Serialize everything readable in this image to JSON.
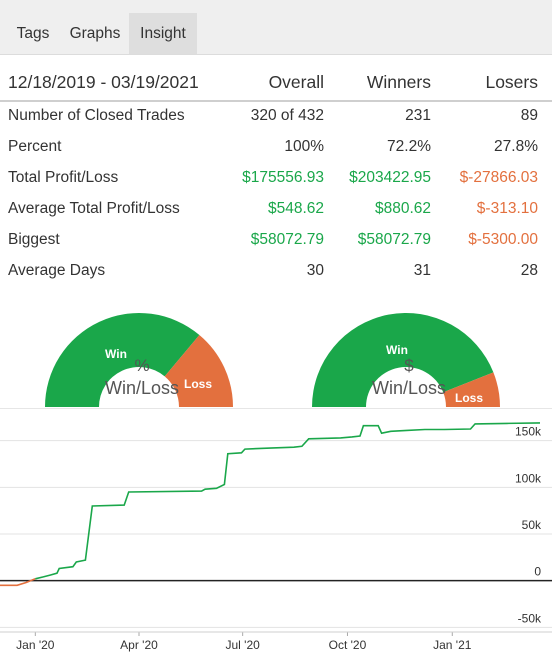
{
  "tabs": [
    {
      "label": "Tags",
      "active": false
    },
    {
      "label": "Graphs",
      "active": false
    },
    {
      "label": "Insight",
      "active": true
    }
  ],
  "stats": {
    "date_range": "12/18/2019 - 03/19/2021",
    "headers": [
      "Overall",
      "Winners",
      "Losers"
    ],
    "rows": [
      {
        "label": "Number of Closed Trades",
        "overall": "320 of 432",
        "winners": "231",
        "losers": "89"
      },
      {
        "label": "Percent",
        "overall": "100%",
        "winners": "72.2%",
        "losers": "27.8%"
      },
      {
        "label": "Total Profit/Loss",
        "overall": "$175556.93",
        "winners": "$203422.95",
        "losers": "$-27866.03"
      },
      {
        "label": "Average Total Profit/Loss",
        "overall": "$548.62",
        "winners": "$880.62",
        "losers": "$-313.10"
      },
      {
        "label": "Biggest",
        "overall": "$58072.79",
        "winners": "$58072.79",
        "losers": "$-5300.00"
      },
      {
        "label": "Average Days",
        "overall": "30",
        "winners": "31",
        "losers": "28"
      }
    ]
  },
  "gauges": [
    {
      "symbol": "%",
      "caption": "Win/Loss",
      "win_label": "Win",
      "loss_label": "Loss",
      "win_fraction": 0.722
    },
    {
      "symbol": "$",
      "caption": "Win/Loss",
      "win_label": "Win",
      "loss_label": "Loss",
      "win_fraction": 0.88
    }
  ],
  "colors": {
    "win": "#1aa74a",
    "loss": "#e3703e",
    "text": "#333333"
  },
  "chart_data": {
    "type": "line",
    "y_ticks": [
      {
        "value": 150000,
        "label": "150k"
      },
      {
        "value": 100000,
        "label": "100k"
      },
      {
        "value": 50000,
        "label": "50k"
      },
      {
        "value": 0,
        "label": "0"
      },
      {
        "value": -50000,
        "label": "-50k"
      }
    ],
    "x_ticks": [
      {
        "date": "2020-01-01",
        "label": "Jan '20"
      },
      {
        "date": "2020-04-01",
        "label": "Apr '20"
      },
      {
        "date": "2020-07-01",
        "label": "Jul '20"
      },
      {
        "date": "2020-10-01",
        "label": "Oct '20"
      },
      {
        "date": "2021-01-01",
        "label": "Jan '21"
      }
    ],
    "ylim": [
      -55000,
      185000
    ],
    "xlim": [
      "2019-12-01",
      "2021-03-19"
    ],
    "grid": true,
    "series": [
      {
        "color": "#1aa74a",
        "points": [
          [
            "2019-12-01",
            -5000
          ],
          [
            "2019-12-16",
            -5000
          ],
          [
            "2019-12-24",
            -2000
          ],
          [
            "2020-01-01",
            2000
          ],
          [
            "2020-01-08",
            4000
          ],
          [
            "2020-01-14",
            6000
          ],
          [
            "2020-01-20",
            8000
          ],
          [
            "2020-01-22",
            13000
          ],
          [
            "2020-02-03",
            15000
          ],
          [
            "2020-02-06",
            20000
          ],
          [
            "2020-02-14",
            22000
          ],
          [
            "2020-02-20",
            80000
          ],
          [
            "2020-03-19",
            81000
          ],
          [
            "2020-03-23",
            95000
          ],
          [
            "2020-05-26",
            96000
          ],
          [
            "2020-05-29",
            98000
          ],
          [
            "2020-06-08",
            99000
          ],
          [
            "2020-06-15",
            103000
          ],
          [
            "2020-06-18",
            136000
          ],
          [
            "2020-06-30",
            137000
          ],
          [
            "2020-07-03",
            141000
          ],
          [
            "2020-07-25",
            142000
          ],
          [
            "2020-08-15",
            143000
          ],
          [
            "2020-08-22",
            144000
          ],
          [
            "2020-08-28",
            152000
          ],
          [
            "2020-09-25",
            153000
          ],
          [
            "2020-10-05",
            154000
          ],
          [
            "2020-10-12",
            155000
          ],
          [
            "2020-10-15",
            166000
          ],
          [
            "2020-10-28",
            166000
          ],
          [
            "2020-10-31",
            158000
          ],
          [
            "2020-11-08",
            160000
          ],
          [
            "2020-11-22",
            161000
          ],
          [
            "2020-12-08",
            162000
          ],
          [
            "2020-12-25",
            162000
          ],
          [
            "2021-01-17",
            162500
          ],
          [
            "2021-01-21",
            168000
          ],
          [
            "2021-02-18",
            168500
          ],
          [
            "2021-03-19",
            169000
          ]
        ]
      }
    ]
  }
}
